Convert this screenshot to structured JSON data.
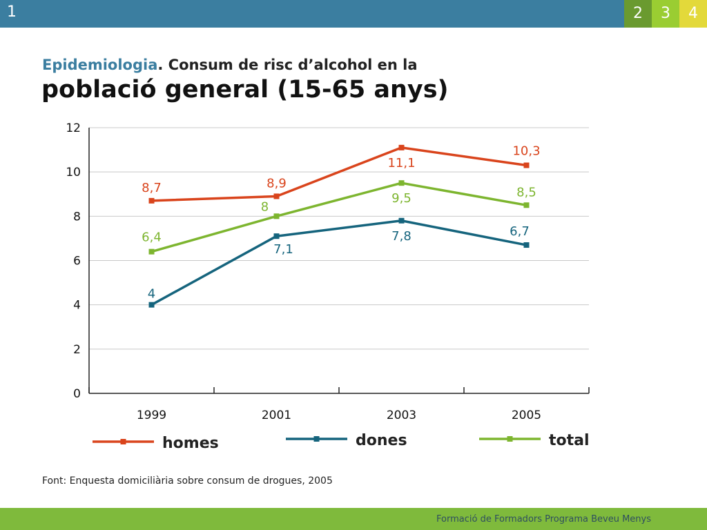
{
  "header": {
    "slide_number": "1",
    "tabs": [
      {
        "label": "2",
        "color": "#6a9a2f"
      },
      {
        "label": "3",
        "color": "#9acd32"
      },
      {
        "label": "4",
        "color": "#e3d93a"
      }
    ],
    "bar_color": "#3b7ea0"
  },
  "title": {
    "line1_accent": "Epidemiologia",
    "line1_rest": ". Consum de risc d’alcohol en la",
    "line2": "població general (15-65 anys)"
  },
  "chart_data": {
    "type": "line",
    "categories": [
      "1999",
      "2001",
      "2003",
      "2005"
    ],
    "ylim": [
      0,
      12
    ],
    "yticks": [
      0,
      2,
      4,
      6,
      8,
      10,
      12
    ],
    "grid": true,
    "legend_position": "bottom",
    "series": [
      {
        "name": "homes",
        "color": "#d9441c",
        "values": [
          8.7,
          8.9,
          11.1,
          10.3
        ],
        "labels": [
          "8,7",
          "8,9",
          "11,1",
          "10,3"
        ]
      },
      {
        "name": "dones",
        "color": "#15647d",
        "values": [
          4,
          7.1,
          7.8,
          6.7
        ],
        "labels": [
          "4",
          "7,1",
          "7,8",
          "6,7"
        ]
      },
      {
        "name": "total",
        "color": "#7db52f",
        "values": [
          6.4,
          8,
          9.5,
          8.5
        ],
        "labels": [
          "6,4",
          "8",
          "9,5",
          "8,5"
        ]
      }
    ]
  },
  "source": "Font: Enquesta domiciliària sobre consum de drogues, 2005",
  "footer": {
    "text": "Formació de Formadors Programa Beveu Menys",
    "bar_color": "#7fba3c"
  }
}
